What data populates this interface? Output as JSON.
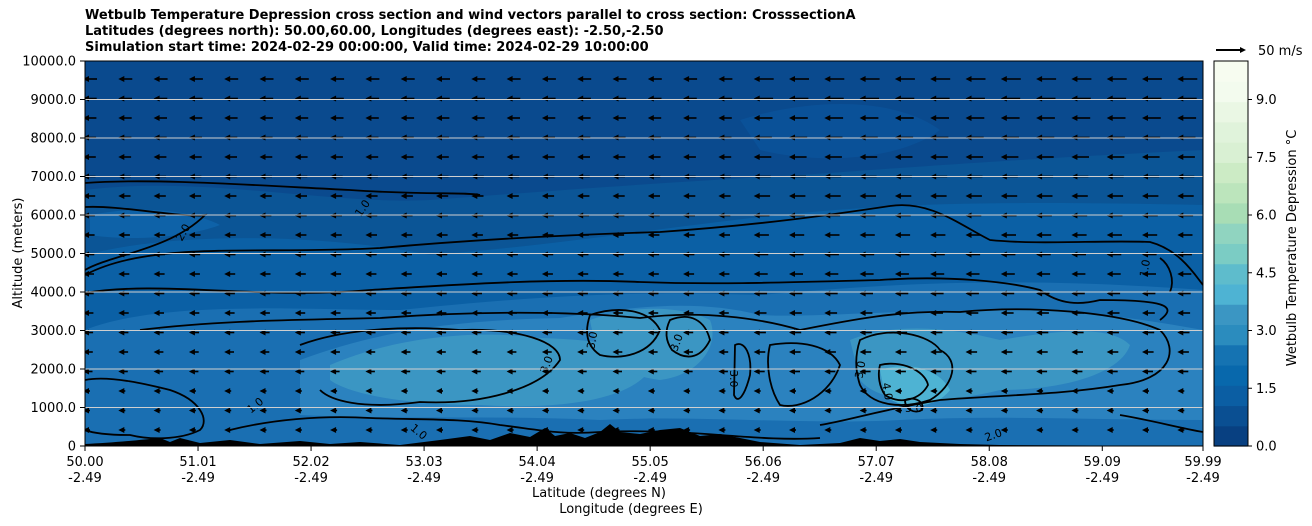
{
  "title_lines": [
    "Wetbulb Temperature Depression cross section and wind vectors parallel to cross section: CrosssectionA",
    "Latitudes (degrees north): 50.00,60.00, Longitudes (degrees east): -2.50,-2.50",
    "Simulation start time: 2024-02-29 00:00:00, Valid time: 2024-02-29 10:00:00"
  ],
  "chart_data": {
    "type": "contour",
    "xlabel_lat": "Latitude (degrees N)",
    "xlabel_lon": "Longitude (degrees E)",
    "ylabel": "Altitude (meters)",
    "ylim": [
      0,
      10000
    ],
    "y_ticks": [
      0,
      1000,
      2000,
      3000,
      4000,
      5000,
      6000,
      7000,
      8000,
      9000,
      10000
    ],
    "y_tick_labels": [
      "0",
      "1000.0",
      "2000.0",
      "3000.0",
      "4000.0",
      "5000.0",
      "6000.0",
      "7000.0",
      "8000.0",
      "9000.0",
      "10000.0"
    ],
    "x_range": [
      50.0,
      59.99
    ],
    "x_ticks": [
      {
        "lat": "50.00",
        "lon": "-2.49"
      },
      {
        "lat": "51.01",
        "lon": "-2.49"
      },
      {
        "lat": "52.02",
        "lon": "-2.49"
      },
      {
        "lat": "53.03",
        "lon": "-2.49"
      },
      {
        "lat": "54.04",
        "lon": "-2.49"
      },
      {
        "lat": "55.05",
        "lon": "-2.49"
      },
      {
        "lat": "56.06",
        "lon": "-2.49"
      },
      {
        "lat": "57.07",
        "lon": "-2.49"
      },
      {
        "lat": "58.08",
        "lon": "-2.49"
      },
      {
        "lat": "59.09",
        "lon": "-2.49"
      },
      {
        "lat": "59.99",
        "lon": "-2.49"
      }
    ],
    "grid_horizontal": true,
    "colorbar": {
      "label": "Wetbulb Temperature Depression °C",
      "range": [
        0.0,
        10.0
      ],
      "ticks": [
        "0.0",
        "1.5",
        "3.0",
        "4.5",
        "6.0",
        "7.5",
        "9.0"
      ],
      "colors": [
        "#084081",
        "#0a4f92",
        "#0b5ea3",
        "#0868ac",
        "#1573b2",
        "#2b8cbe",
        "#3b96c3",
        "#4eb3d3",
        "#5ebccc",
        "#7bccc4",
        "#90d4c0",
        "#a8ddb5",
        "#bce5bc",
        "#ccebc5",
        "#d9f0d3",
        "#e0f3db",
        "#eaf7e4",
        "#f3fbee",
        "#f7fcf0"
      ]
    },
    "contour_levels": [
      "1.0",
      "2.0",
      "3.0",
      "4.0",
      "5.0"
    ],
    "wind_reference": {
      "label": "50 m/s",
      "speed": 50
    },
    "wind_direction": "left (southward along section)"
  }
}
